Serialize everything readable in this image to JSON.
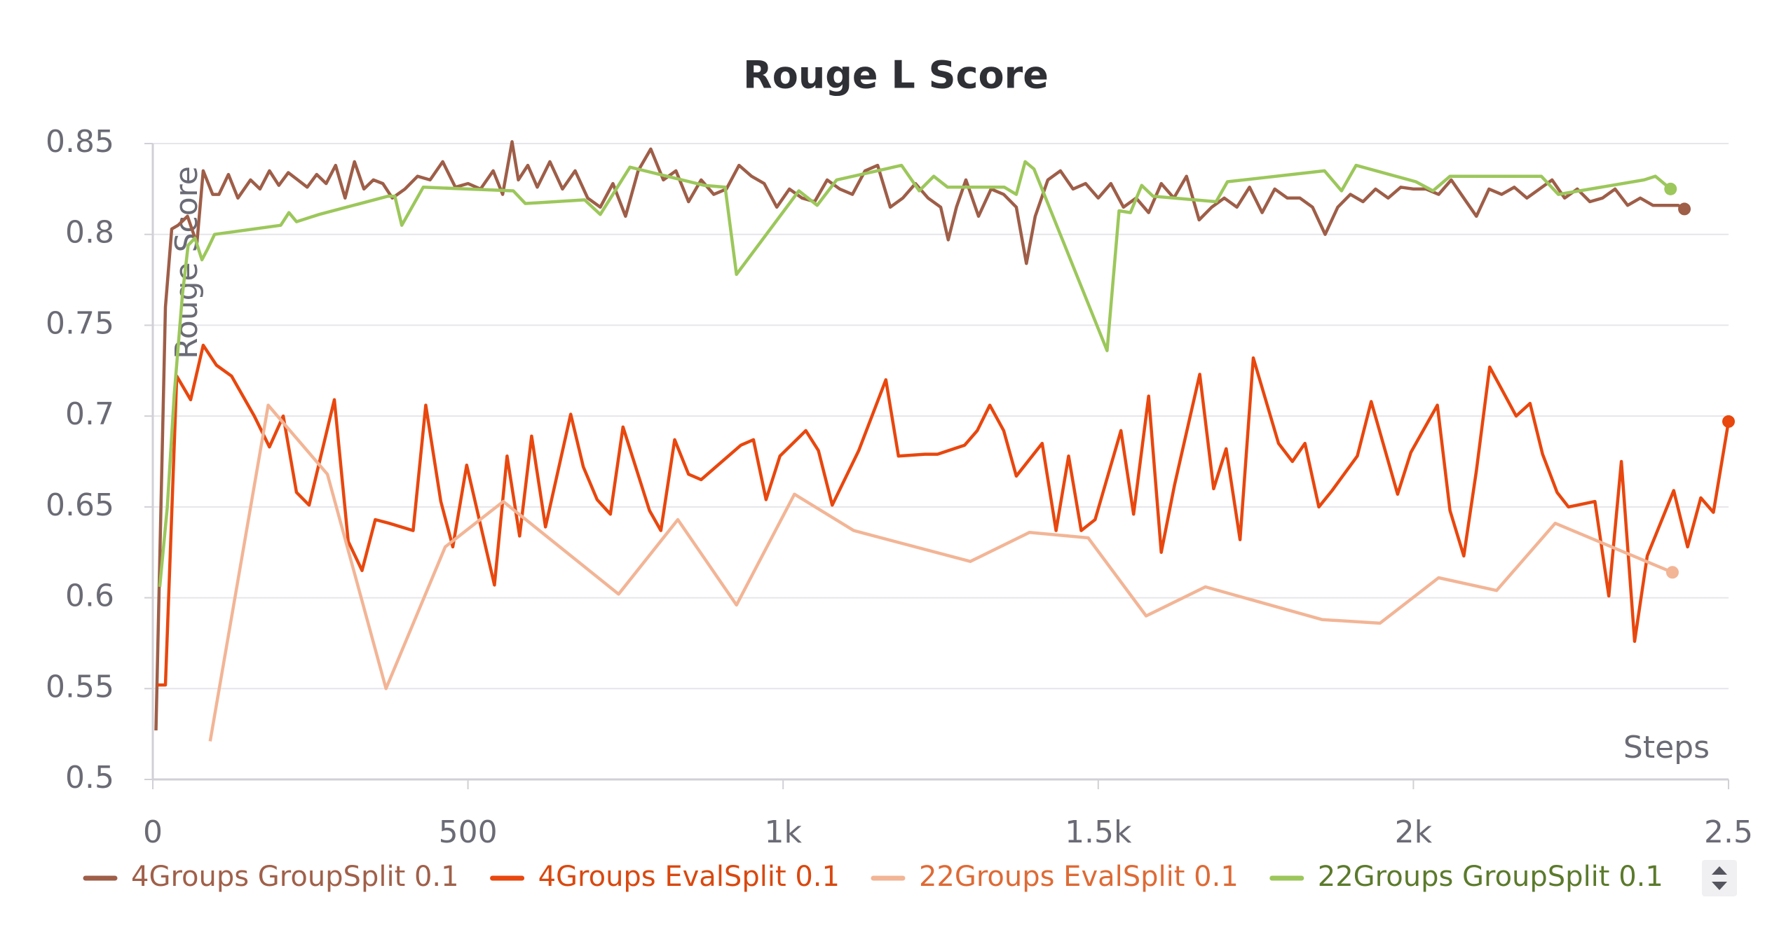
{
  "chart_data": {
    "type": "line",
    "title": "Rouge L Score",
    "x_label": "Steps",
    "y_label": "Rouge Score",
    "xlim": [
      0,
      2500
    ],
    "ylim": [
      0.5,
      0.85
    ],
    "xticks": [
      0,
      500,
      {
        "value": 1000,
        "label": "1k"
      },
      {
        "value": 1500,
        "label": "1.5k"
      },
      {
        "value": 2000,
        "label": "2k"
      },
      {
        "value": 2500,
        "label": "2.5"
      }
    ],
    "yticks": [
      {
        "value": 0.5,
        "label": "0.5"
      },
      0.55,
      {
        "value": 0.6,
        "label": "0.6"
      },
      0.65,
      {
        "value": 0.7,
        "label": "0.7"
      },
      0.75,
      {
        "value": 0.8,
        "label": "0.8"
      },
      0.85
    ],
    "grid": true,
    "series": [
      {
        "name": "4Groups GroupSplit 0.1",
        "color": "#9e5e48",
        "label_color": "#a0604a",
        "x": [
          5,
          20,
          30,
          40,
          55,
          70,
          80,
          95,
          105,
          120,
          135,
          155,
          170,
          185,
          200,
          215,
          230,
          245,
          260,
          275,
          290,
          305,
          320,
          335,
          350,
          365,
          380,
          400,
          420,
          440,
          460,
          480,
          500,
          520,
          540,
          555,
          570,
          580,
          595,
          610,
          630,
          650,
          670,
          690,
          710,
          730,
          750,
          770,
          790,
          810,
          830,
          850,
          870,
          890,
          910,
          930,
          950,
          970,
          990,
          1010,
          1030,
          1050,
          1070,
          1090,
          1110,
          1130,
          1150,
          1170,
          1190,
          1210,
          1230,
          1250,
          1262,
          1275,
          1290,
          1310,
          1330,
          1350,
          1370,
          1386,
          1400,
          1420,
          1440,
          1460,
          1480,
          1500,
          1520,
          1540,
          1560,
          1580,
          1600,
          1620,
          1640,
          1660,
          1680,
          1700,
          1720,
          1740,
          1760,
          1780,
          1800,
          1820,
          1840,
          1860,
          1880,
          1900,
          1920,
          1940,
          1960,
          1980,
          2000,
          2020,
          2040,
          2060,
          2080,
          2100,
          2120,
          2140,
          2160,
          2180,
          2200,
          2220,
          2240,
          2260,
          2280,
          2300,
          2320,
          2340,
          2360,
          2380,
          2400,
          2420,
          2430
        ],
        "values": [
          0.527,
          0.76,
          0.803,
          0.805,
          0.81,
          0.795,
          0.835,
          0.822,
          0.822,
          0.833,
          0.82,
          0.83,
          0.825,
          0.835,
          0.827,
          0.834,
          0.83,
          0.826,
          0.833,
          0.828,
          0.838,
          0.82,
          0.84,
          0.825,
          0.83,
          0.828,
          0.82,
          0.825,
          0.832,
          0.83,
          0.84,
          0.826,
          0.828,
          0.825,
          0.835,
          0.822,
          0.851,
          0.83,
          0.838,
          0.826,
          0.84,
          0.825,
          0.835,
          0.82,
          0.815,
          0.828,
          0.81,
          0.835,
          0.847,
          0.83,
          0.835,
          0.818,
          0.83,
          0.822,
          0.825,
          0.838,
          0.832,
          0.828,
          0.815,
          0.825,
          0.82,
          0.818,
          0.83,
          0.825,
          0.822,
          0.835,
          0.838,
          0.815,
          0.82,
          0.828,
          0.82,
          0.815,
          0.797,
          0.815,
          0.83,
          0.81,
          0.825,
          0.822,
          0.815,
          0.784,
          0.81,
          0.83,
          0.835,
          0.825,
          0.828,
          0.82,
          0.828,
          0.815,
          0.82,
          0.812,
          0.828,
          0.82,
          0.832,
          0.808,
          0.815,
          0.82,
          0.815,
          0.826,
          0.812,
          0.825,
          0.82,
          0.82,
          0.815,
          0.8,
          0.815,
          0.822,
          0.818,
          0.825,
          0.82,
          0.826,
          0.825,
          0.825,
          0.822,
          0.83,
          0.82,
          0.81,
          0.825,
          0.822,
          0.826,
          0.82,
          0.825,
          0.83,
          0.82,
          0.825,
          0.818,
          0.82,
          0.825,
          0.816,
          0.82,
          0.816,
          0.816,
          0.816,
          0.814
        ]
      },
      {
        "name": "4Groups EvalSplit 0.1",
        "color": "#e8470e",
        "label_color": "#d9480f",
        "x": [
          7,
          20,
          38,
          60,
          80,
          101,
          125,
          161,
          185,
          207,
          228,
          248,
          288,
          310,
          332,
          353,
          375,
          413,
          433,
          457,
          476,
          498,
          542,
          562,
          582,
          601,
          623,
          663,
          683,
          705,
          726,
          746,
          788,
          806,
          828,
          850,
          870,
          933,
          953,
          973,
          995,
          1036,
          1056,
          1078,
          1120,
          1163,
          1183,
          1225,
          1245,
          1288,
          1308,
          1328,
          1350,
          1370,
          1411,
          1433,
          1453,
          1473,
          1495,
          1536,
          1556,
          1580,
          1600,
          1621,
          1661,
          1683,
          1703,
          1725,
          1746,
          1786,
          1808,
          1828,
          1850,
          1871,
          1911,
          1933,
          1975,
          1996,
          2038,
          2058,
          2080,
          2100,
          2121,
          2163,
          2185,
          2205,
          2228,
          2246,
          2288,
          2310,
          2330,
          2351,
          2371,
          2413,
          2435,
          2456,
          2476,
          2500
        ],
        "values": [
          0.552,
          0.552,
          0.722,
          0.709,
          0.739,
          0.728,
          0.722,
          0.7,
          0.683,
          0.7,
          0.658,
          0.651,
          0.709,
          0.631,
          0.615,
          0.643,
          0.641,
          0.637,
          0.706,
          0.653,
          0.628,
          0.673,
          0.607,
          0.678,
          0.634,
          0.689,
          0.639,
          0.701,
          0.672,
          0.654,
          0.646,
          0.694,
          0.648,
          0.637,
          0.687,
          0.668,
          0.665,
          0.684,
          0.687,
          0.654,
          0.678,
          0.692,
          0.681,
          0.651,
          0.681,
          0.72,
          0.678,
          0.679,
          0.679,
          0.684,
          0.692,
          0.706,
          0.692,
          0.667,
          0.685,
          0.637,
          0.678,
          0.637,
          0.643,
          0.692,
          0.646,
          0.711,
          0.625,
          0.662,
          0.723,
          0.66,
          0.682,
          0.632,
          0.732,
          0.685,
          0.675,
          0.685,
          0.65,
          0.659,
          0.678,
          0.708,
          0.657,
          0.68,
          0.706,
          0.648,
          0.623,
          0.67,
          0.727,
          0.7,
          0.707,
          0.679,
          0.658,
          0.65,
          0.653,
          0.601,
          0.675,
          0.576,
          0.623,
          0.659,
          0.628,
          0.655,
          0.647,
          0.697
        ]
      },
      {
        "name": "22Groups EvalSplit 0.1",
        "color": "#f2b596",
        "label_color": "#de6a35",
        "x": [
          91,
          183,
          277,
          370,
          464,
          556,
          739,
          833,
          926,
          1018,
          1112,
          1297,
          1391,
          1484,
          1576,
          1670,
          1855,
          1947,
          2040,
          2132,
          2225,
          2411
        ],
        "values": [
          0.521,
          0.706,
          0.668,
          0.55,
          0.628,
          0.653,
          0.602,
          0.643,
          0.596,
          0.657,
          0.637,
          0.62,
          0.636,
          0.633,
          0.59,
          0.606,
          0.588,
          0.586,
          0.611,
          0.604,
          0.641,
          0.614
        ]
      },
      {
        "name": "22Groups GroupSplit 0.1",
        "color": "#9cc75b",
        "label_color": "#5b7a2c",
        "x": [
          11,
          23,
          34,
          47,
          56,
          67,
          78,
          87,
          98,
          203,
          216,
          228,
          246,
          264,
          373,
          384,
          395,
          429,
          572,
          591,
          685,
          710,
          757,
          875,
          908,
          926,
          1025,
          1054,
          1085,
          1188,
          1216,
          1239,
          1261,
          1351,
          1370,
          1384,
          1398,
          1514,
          1533,
          1551,
          1569,
          1587,
          1687,
          1705,
          1859,
          1886,
          1909,
          2004,
          2031,
          2058,
          2203,
          2230,
          2366,
          2384,
          2408
        ],
        "values": [
          0.606,
          0.65,
          0.712,
          0.767,
          0.794,
          0.798,
          0.786,
          0.792,
          0.8,
          0.805,
          0.812,
          0.807,
          0.809,
          0.811,
          0.821,
          0.821,
          0.805,
          0.826,
          0.824,
          0.817,
          0.819,
          0.811,
          0.837,
          0.827,
          0.826,
          0.778,
          0.824,
          0.816,
          0.83,
          0.838,
          0.824,
          0.832,
          0.826,
          0.826,
          0.822,
          0.84,
          0.836,
          0.736,
          0.813,
          0.812,
          0.827,
          0.821,
          0.818,
          0.829,
          0.835,
          0.824,
          0.838,
          0.829,
          0.824,
          0.832,
          0.832,
          0.822,
          0.83,
          0.832,
          0.825
        ]
      }
    ]
  }
}
